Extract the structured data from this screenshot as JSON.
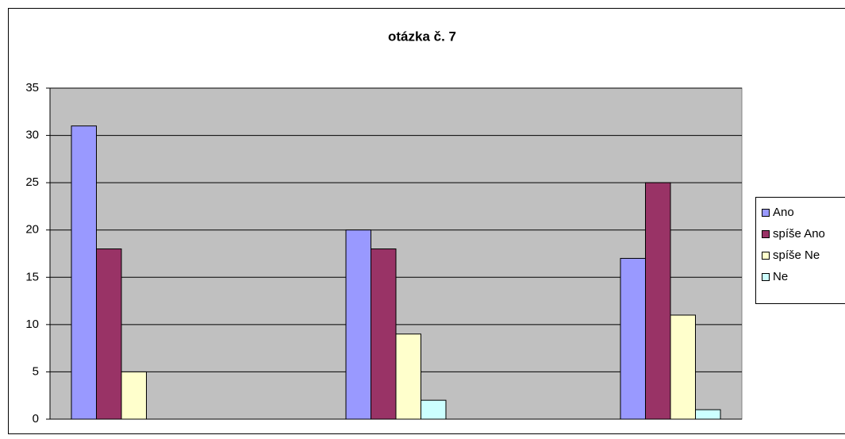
{
  "chart_data": {
    "type": "bar",
    "title": "otázka č. 7",
    "categories": [
      null,
      null,
      null
    ],
    "series": [
      {
        "name": "Ano",
        "color": "#9999ff",
        "values": [
          31,
          20,
          17
        ]
      },
      {
        "name": "spíše Ano",
        "color": "#993366",
        "values": [
          18,
          18,
          25
        ]
      },
      {
        "name": "spíše Ne",
        "color": "#ffffcc",
        "values": [
          5,
          9,
          11
        ]
      },
      {
        "name": "Ne",
        "color": "#ccffff",
        "values": [
          0,
          2,
          1
        ]
      }
    ],
    "ylim": [
      0,
      35
    ],
    "yticks": [
      0,
      5,
      10,
      15,
      20,
      25,
      30,
      35
    ],
    "grid": true,
    "legend": "right"
  }
}
